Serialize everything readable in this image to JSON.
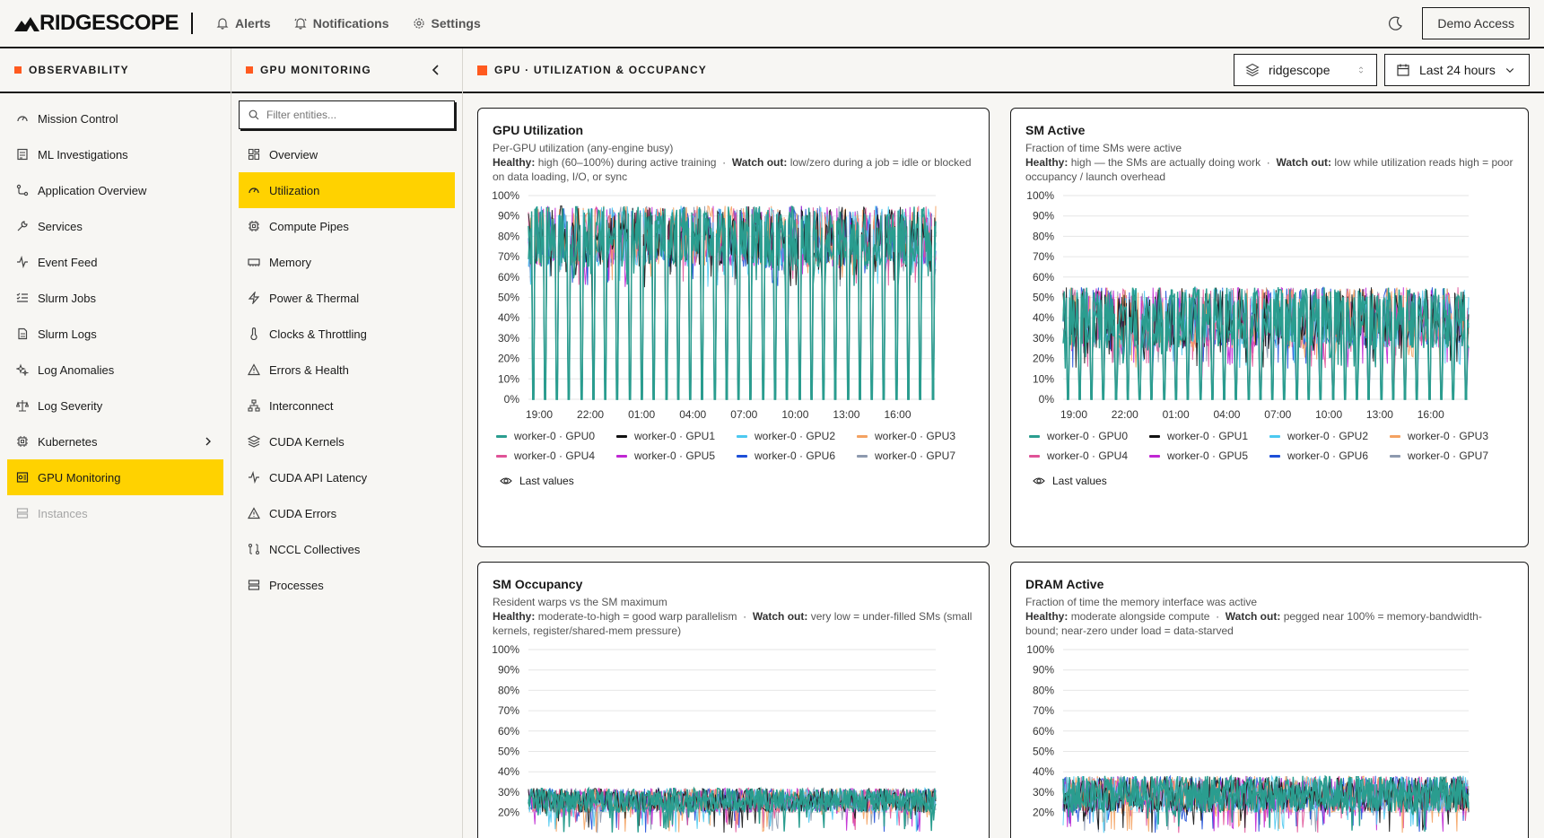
{
  "brand": {
    "name": "RIDGESCOPE"
  },
  "topnav": [
    {
      "label": "Alerts",
      "icon": "bell-icon"
    },
    {
      "label": "Notifications",
      "icon": "bell-ring-icon"
    },
    {
      "label": "Settings",
      "icon": "gear-icon"
    }
  ],
  "demo_label": "Demo Access",
  "sidebar": {
    "title": "OBSERVABILITY",
    "items": [
      {
        "label": "Mission Control"
      },
      {
        "label": "ML Investigations"
      },
      {
        "label": "Application Overview"
      },
      {
        "label": "Services"
      },
      {
        "label": "Event Feed"
      },
      {
        "label": "Slurm Jobs"
      },
      {
        "label": "Slurm Logs"
      },
      {
        "label": "Log Anomalies"
      },
      {
        "label": "Log Severity"
      },
      {
        "label": "Kubernetes"
      },
      {
        "label": "GPU Monitoring"
      },
      {
        "label": "Instances"
      }
    ]
  },
  "subnav": {
    "title": "GPU MONITORING",
    "filter_placeholder": "Filter entities...",
    "items": [
      {
        "label": "Overview"
      },
      {
        "label": "Utilization"
      },
      {
        "label": "Compute Pipes"
      },
      {
        "label": "Memory"
      },
      {
        "label": "Power & Thermal"
      },
      {
        "label": "Clocks & Throttling"
      },
      {
        "label": "Errors & Health"
      },
      {
        "label": "Interconnect"
      },
      {
        "label": "CUDA Kernels"
      },
      {
        "label": "CUDA API Latency"
      },
      {
        "label": "CUDA Errors"
      },
      {
        "label": "NCCL Collectives"
      },
      {
        "label": "Processes"
      }
    ]
  },
  "main": {
    "title": "GPU · UTILIZATION & OCCUPANCY",
    "project": "ridgescope",
    "timerange": "Last 24 hours"
  },
  "colors": {
    "accent_orange": "#ff5a1f",
    "active_yellow": "#ffd200",
    "series": [
      "#2a9d8f",
      "#111111",
      "#4cc9f0",
      "#f4a261",
      "#e05297",
      "#c026d3",
      "#1d4ed8",
      "#8d99ae"
    ]
  },
  "legend": [
    "worker-0 · GPU0",
    "worker-0 · GPU1",
    "worker-0 · GPU2",
    "worker-0 · GPU3",
    "worker-0 · GPU4",
    "worker-0 · GPU5",
    "worker-0 · GPU6",
    "worker-0 · GPU7"
  ],
  "last_values_label": "Last values",
  "cards": [
    {
      "title": "GPU Utilization",
      "subtitle": "Per-GPU utilization (any-engine busy)",
      "healthy_label": "Healthy:",
      "healthy": "high (60–100%) during active training",
      "watch_label": "Watch out:",
      "watch": "low/zero during a job = idle or blocked on data loading, I/O, or sync"
    },
    {
      "title": "SM Active",
      "subtitle": "Fraction of time SMs were active",
      "healthy_label": "Healthy:",
      "healthy": "high — the SMs are actually doing work",
      "watch_label": "Watch out:",
      "watch": "low while utilization reads high = poor occupancy / launch overhead"
    },
    {
      "title": "SM Occupancy",
      "subtitle": "Resident warps vs the SM maximum",
      "healthy_label": "Healthy:",
      "healthy": "moderate-to-high = good warp parallelism",
      "watch_label": "Watch out:",
      "watch": "very low = under-filled SMs (small kernels, register/shared-mem pressure)"
    },
    {
      "title": "DRAM Active",
      "subtitle": "Fraction of time the memory interface was active",
      "healthy_label": "Healthy:",
      "healthy": "moderate alongside compute",
      "watch_label": "Watch out:",
      "watch": "pegged near 100% = memory-bandwidth-bound; near-zero under load = data-starved"
    }
  ],
  "chart_data": [
    {
      "type": "line",
      "title": "GPU Utilization",
      "ylim": [
        0,
        100
      ],
      "yticks": [
        "100%",
        "90%",
        "80%",
        "70%",
        "60%",
        "50%",
        "40%",
        "30%",
        "20%",
        "10%",
        "0%"
      ],
      "xticks": [
        "19:00",
        "22:00",
        "01:00",
        "04:00",
        "07:00",
        "10:00",
        "13:00",
        "16:00"
      ],
      "series_count": 8,
      "typical_range": [
        65,
        95
      ],
      "drops_to": 0,
      "drop_count": 34
    },
    {
      "type": "line",
      "title": "SM Active",
      "ylim": [
        0,
        100
      ],
      "yticks": [
        "100%",
        "90%",
        "80%",
        "70%",
        "60%",
        "50%",
        "40%",
        "30%",
        "20%",
        "10%",
        "0%"
      ],
      "xticks": [
        "19:00",
        "22:00",
        "01:00",
        "04:00",
        "07:00",
        "10:00",
        "13:00",
        "16:00"
      ],
      "series_count": 8,
      "typical_range": [
        25,
        55
      ],
      "drops_to": 0,
      "drop_count": 34
    },
    {
      "type": "line",
      "title": "SM Occupancy",
      "ylim": [
        0,
        100
      ],
      "yticks": [
        "100%",
        "90%",
        "80%",
        "70%",
        "60%",
        "50%",
        "40%",
        "30%",
        "20%"
      ],
      "typical_range": [
        20,
        32
      ]
    },
    {
      "type": "line",
      "title": "DRAM Active",
      "ylim": [
        0,
        100
      ],
      "yticks": [
        "100%",
        "90%",
        "80%",
        "70%",
        "60%",
        "50%",
        "40%",
        "30%",
        "20%"
      ],
      "typical_range": [
        20,
        38
      ]
    }
  ]
}
